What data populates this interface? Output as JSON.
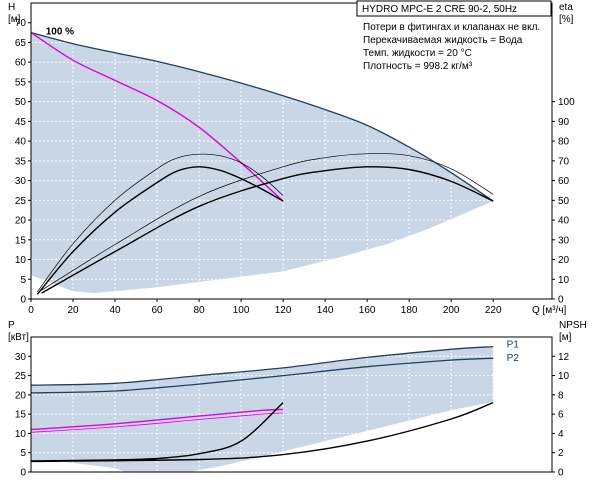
{
  "title": "HYDRO MPC-E 2 CRE 90-2, 50Hz",
  "info_lines": [
    "Потери в фитингах и клапанах не вкл.",
    "Перекачиваемая жидкость = Вода",
    "Темп. жидкости = 20 °C",
    "Плотность = 998.2 кг/м³"
  ],
  "colors": {
    "area": "#c8d6e6",
    "envelope": "#1f3f66",
    "curve": "#000000",
    "highlight": "#e000e0",
    "background": "#ffffff"
  },
  "chart_data": [
    {
      "type": "line",
      "name": "QH",
      "xlabel": "Q [м³/ч]",
      "ylabel": "H [м]",
      "y2label": "eta [%]",
      "xlim": [
        0,
        248
      ],
      "ylim": [
        0,
        75
      ],
      "y2lim": [
        0,
        150
      ],
      "x_ticks": [
        0,
        20,
        40,
        60,
        80,
        100,
        120,
        140,
        160,
        180,
        200,
        220
      ],
      "y_ticks": [
        0,
        5,
        10,
        15,
        20,
        25,
        30,
        35,
        40,
        45,
        50,
        55,
        60,
        65,
        70
      ],
      "y2_ticks": [
        0,
        10,
        20,
        30,
        40,
        50,
        60,
        70,
        80,
        90,
        100
      ],
      "grid": true,
      "annotations": [
        {
          "text": "100 %",
          "x": 7,
          "y": 67
        }
      ],
      "operating_area": {
        "upper": [
          [
            0,
            67.5
          ],
          [
            20,
            64.7
          ],
          [
            40,
            62.4
          ],
          [
            60,
            60.2
          ],
          [
            80,
            57.6
          ],
          [
            100,
            54.7
          ],
          [
            120,
            51.5
          ],
          [
            140,
            48.0
          ],
          [
            160,
            44.0
          ],
          [
            180,
            38.5
          ],
          [
            200,
            32.0
          ],
          [
            220,
            25.0
          ]
        ],
        "lower": [
          [
            220,
            24.8
          ],
          [
            190,
            18
          ],
          [
            170,
            14
          ],
          [
            150,
            11
          ],
          [
            120,
            7
          ],
          [
            90,
            5
          ],
          [
            60,
            3
          ],
          [
            40,
            2
          ],
          [
            30,
            1.5
          ],
          [
            20,
            2
          ],
          [
            10,
            4
          ],
          [
            0,
            6
          ]
        ]
      },
      "series": [
        {
          "role": "envelope",
          "points": [
            [
              0,
              67.5
            ],
            [
              20,
              64.7
            ],
            [
              40,
              62.4
            ],
            [
              60,
              60.2
            ],
            [
              80,
              57.6
            ],
            [
              100,
              54.7
            ],
            [
              120,
              51.5
            ],
            [
              140,
              48.0
            ],
            [
              160,
              44.0
            ],
            [
              180,
              38.5
            ],
            [
              200,
              32.0
            ],
            [
              220,
              24.8
            ]
          ]
        },
        {
          "role": "highlight",
          "points": [
            [
              0,
              67.5
            ],
            [
              20,
              60.5
            ],
            [
              40,
              55.4
            ],
            [
              60,
              50.3
            ],
            [
              80,
              43.5
            ],
            [
              100,
              34.5
            ],
            [
              120,
              24.8
            ]
          ]
        },
        {
          "role": "curve",
          "points": [
            [
              3,
              1.2
            ],
            [
              20,
              12
            ],
            [
              40,
              22
            ],
            [
              60,
              29.5
            ],
            [
              70,
              32.5
            ],
            [
              80,
              33.5
            ],
            [
              90,
              32.6
            ],
            [
              100,
              30.5
            ],
            [
              110,
              27.8
            ],
            [
              120,
              24.8
            ]
          ]
        },
        {
          "role": "curve-thin",
          "points": [
            [
              3,
              1.8
            ],
            [
              20,
              14
            ],
            [
              40,
              25
            ],
            [
              60,
              33
            ],
            [
              70,
              35.8
            ],
            [
              80,
              36.7
            ],
            [
              90,
              36.3
            ],
            [
              100,
              34.5
            ],
            [
              110,
              31
            ],
            [
              120,
              26.2
            ]
          ]
        },
        {
          "role": "curve",
          "points": [
            [
              5,
              1.5
            ],
            [
              40,
              12
            ],
            [
              80,
              23.5
            ],
            [
              120,
              30.5
            ],
            [
              140,
              32.5
            ],
            [
              160,
              33.5
            ],
            [
              180,
              32.8
            ],
            [
              200,
              29.8
            ],
            [
              220,
              24.8
            ]
          ]
        },
        {
          "role": "curve-thin",
          "points": [
            [
              5,
              2.2
            ],
            [
              40,
              13.8
            ],
            [
              80,
              26
            ],
            [
              120,
              33.5
            ],
            [
              140,
              35.8
            ],
            [
              160,
              36.8
            ],
            [
              180,
              36.3
            ],
            [
              200,
              33
            ],
            [
              220,
              26.5
            ]
          ]
        }
      ]
    },
    {
      "type": "line",
      "name": "power",
      "xlabel": "",
      "ylabel": "P [кВт]",
      "y2label": "NPSH [м]",
      "xlim": [
        0,
        248
      ],
      "ylim": [
        0,
        35
      ],
      "y2lim": [
        0,
        14
      ],
      "y_ticks": [
        0,
        5,
        10,
        15,
        20,
        25,
        30
      ],
      "y2_ticks": [
        0,
        2,
        4,
        6,
        8,
        10,
        12
      ],
      "grid": true,
      "series_labels": [
        {
          "name": "P1",
          "x": 225,
          "y": 33
        },
        {
          "name": "P2",
          "x": 225,
          "y": 29.5
        }
      ],
      "operating_area": {
        "upper": [
          [
            0,
            22.5
          ],
          [
            40,
            23
          ],
          [
            80,
            25
          ],
          [
            120,
            27
          ],
          [
            160,
            29.7
          ],
          [
            200,
            31.8
          ],
          [
            220,
            32.5
          ]
        ],
        "lower": [
          [
            220,
            18.2
          ],
          [
            200,
            16
          ],
          [
            170,
            12
          ],
          [
            140,
            8
          ],
          [
            110,
            4
          ],
          [
            90,
            1.5
          ],
          [
            75,
            0
          ],
          [
            45,
            0
          ],
          [
            40,
            1
          ],
          [
            25,
            2
          ],
          [
            10,
            3
          ],
          [
            0,
            3
          ]
        ]
      },
      "series": [
        {
          "name": "P1",
          "role": "envelope",
          "points": [
            [
              0,
              22.5
            ],
            [
              40,
              23
            ],
            [
              80,
              25
            ],
            [
              120,
              27
            ],
            [
              160,
              29.7
            ],
            [
              200,
              31.8
            ],
            [
              220,
              32.5
            ]
          ]
        },
        {
          "name": "P2",
          "role": "envelope",
          "points": [
            [
              0,
              20.5
            ],
            [
              40,
              21
            ],
            [
              80,
              22.8
            ],
            [
              120,
              25
            ],
            [
              160,
              27.3
            ],
            [
              200,
              29
            ],
            [
              220,
              29.5
            ]
          ]
        },
        {
          "role": "highlight",
          "points": [
            [
              0,
              11
            ],
            [
              40,
              12.5
            ],
            [
              80,
              14.5
            ],
            [
              110,
              16
            ],
            [
              120,
              16.2
            ]
          ]
        },
        {
          "role": "highlight-thin",
          "points": [
            [
              0,
              10.3
            ],
            [
              40,
              11.7
            ],
            [
              80,
              13.6
            ],
            [
              110,
              15
            ],
            [
              120,
              15.3
            ]
          ]
        },
        {
          "role": "curve",
          "axis": "y2",
          "points": [
            [
              0,
              1.15
            ],
            [
              40,
              1.25
            ],
            [
              60,
              1.4
            ],
            [
              80,
              1.9
            ],
            [
              100,
              3.2
            ],
            [
              120,
              7.2
            ]
          ]
        },
        {
          "role": "curve",
          "axis": "y2",
          "points": [
            [
              0,
              1.1
            ],
            [
              80,
              1.3
            ],
            [
              120,
              1.8
            ],
            [
              160,
              3.2
            ],
            [
              200,
              5.5
            ],
            [
              220,
              7.2
            ]
          ]
        }
      ]
    }
  ]
}
